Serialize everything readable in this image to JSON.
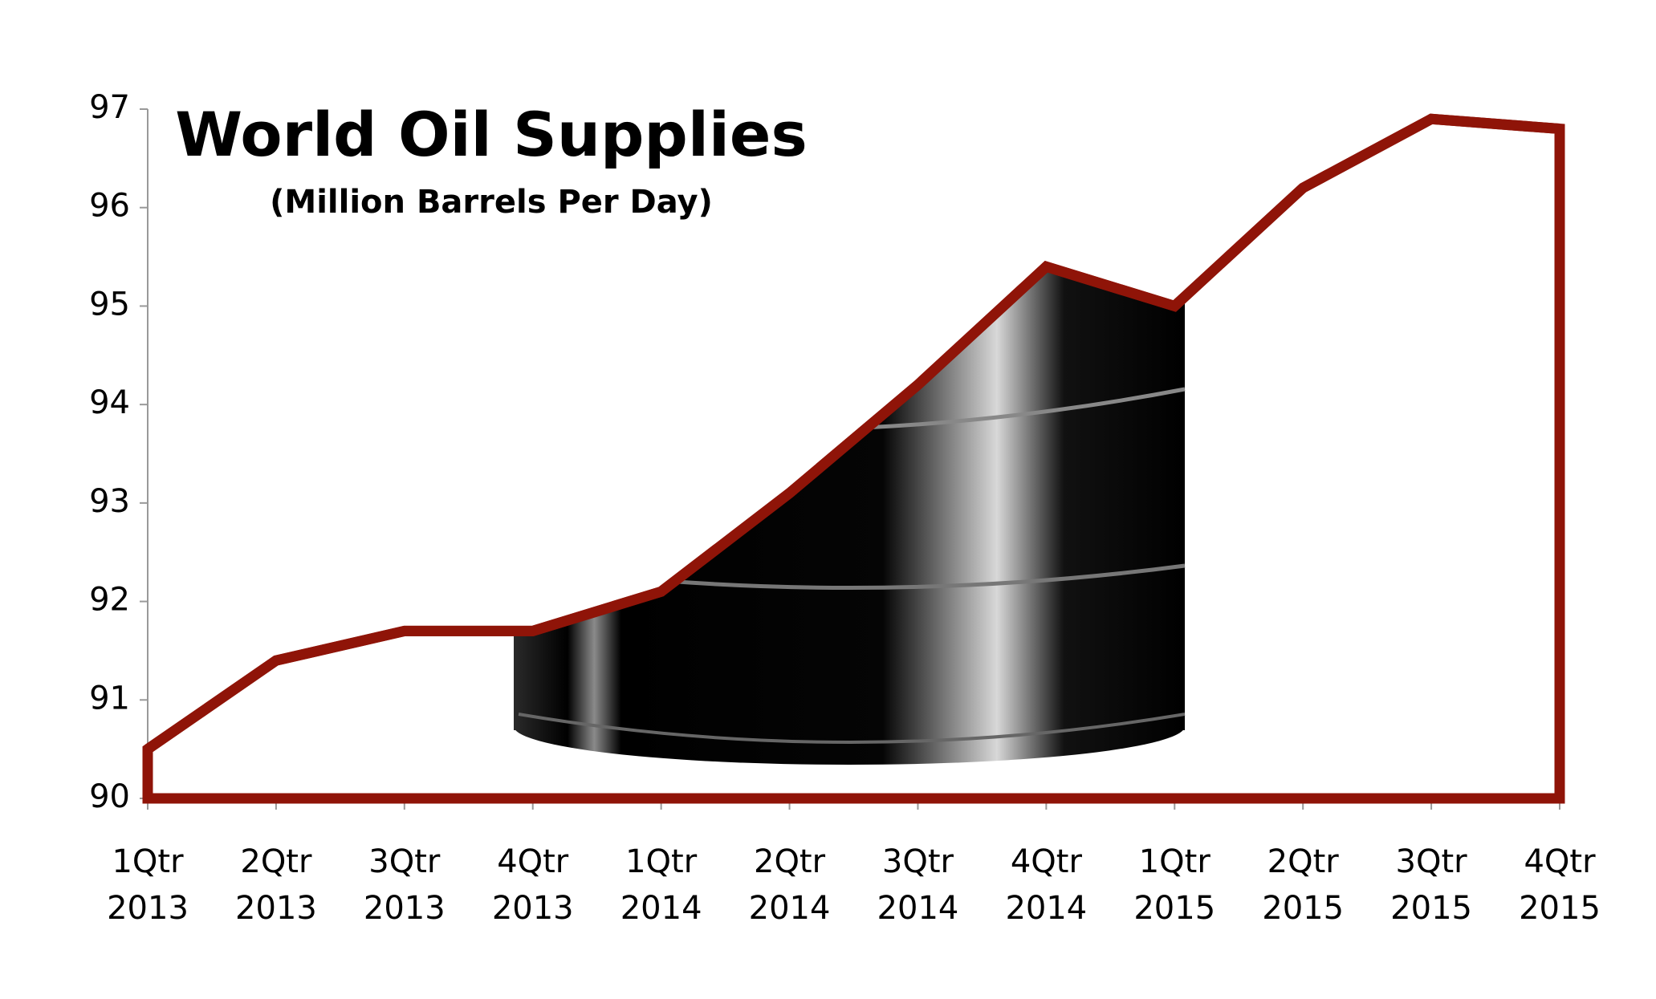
{
  "chart_data": {
    "type": "area",
    "title": "World Oil Supplies",
    "subtitle": "(Million Barrels Per Day)",
    "categories": [
      "1Qtr\n2013",
      "2Qtr\n2013",
      "3Qtr\n2013",
      "4Qtr\n2013",
      "1Qtr\n2014",
      "2Qtr\n2014",
      "3Qtr\n2014",
      "4Qtr\n2014",
      "1Qtr\n2015",
      "2Qtr\n2015",
      "3Qtr\n2015",
      "4Qtr\n2015"
    ],
    "values": [
      90.5,
      91.4,
      91.7,
      91.7,
      92.1,
      93.1,
      94.2,
      95.4,
      95.0,
      96.2,
      96.9,
      96.8
    ],
    "color": "#8f1408",
    "ylim": [
      90,
      97
    ],
    "yticks": [
      90,
      91,
      92,
      93,
      94,
      95,
      96,
      97
    ]
  }
}
